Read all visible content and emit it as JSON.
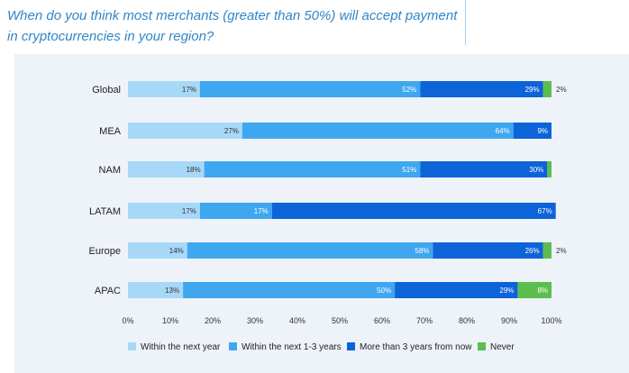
{
  "question": "When do you think most merchants (greater than 50%) will accept payment in cryptocurrencies in your region?",
  "chart_data": {
    "type": "bar",
    "orientation": "horizontal",
    "stacked": true,
    "categories": [
      "Global",
      "MEA",
      "NAM",
      "LATAM",
      "Europe",
      "APAC"
    ],
    "series": [
      {
        "name": "Within the next year",
        "color": "#a8d8f8",
        "values": [
          17,
          27,
          18,
          17,
          14,
          13
        ],
        "labels": [
          "17%",
          "27%",
          "18%",
          "17%",
          "14%",
          "13%"
        ]
      },
      {
        "name": "Within the next 1-3 years",
        "color": "#3fa6f0",
        "values": [
          52,
          64,
          51,
          17,
          58,
          50
        ],
        "labels": [
          "52%",
          "64%",
          "51%",
          "17%",
          "58%",
          "50%"
        ]
      },
      {
        "name": "More than 3 years from now",
        "color": "#0d63d8",
        "values": [
          29,
          9,
          30,
          67,
          26,
          29
        ],
        "labels": [
          "29%",
          "9%",
          "30%",
          "67%",
          "26%",
          "29%"
        ]
      },
      {
        "name": "Never",
        "color": "#5cbe4e",
        "values": [
          2,
          0,
          1,
          0,
          2,
          8
        ],
        "labels": [
          "2%",
          "",
          "",
          "",
          "2%",
          "8%"
        ]
      }
    ],
    "xlim": [
      0,
      100
    ],
    "xticks": [
      "0%",
      "10%",
      "20%",
      "30%",
      "40%",
      "50%",
      "60%",
      "70%",
      "80%",
      "90%",
      "100%"
    ],
    "legend_position": "bottom",
    "grid": false
  }
}
